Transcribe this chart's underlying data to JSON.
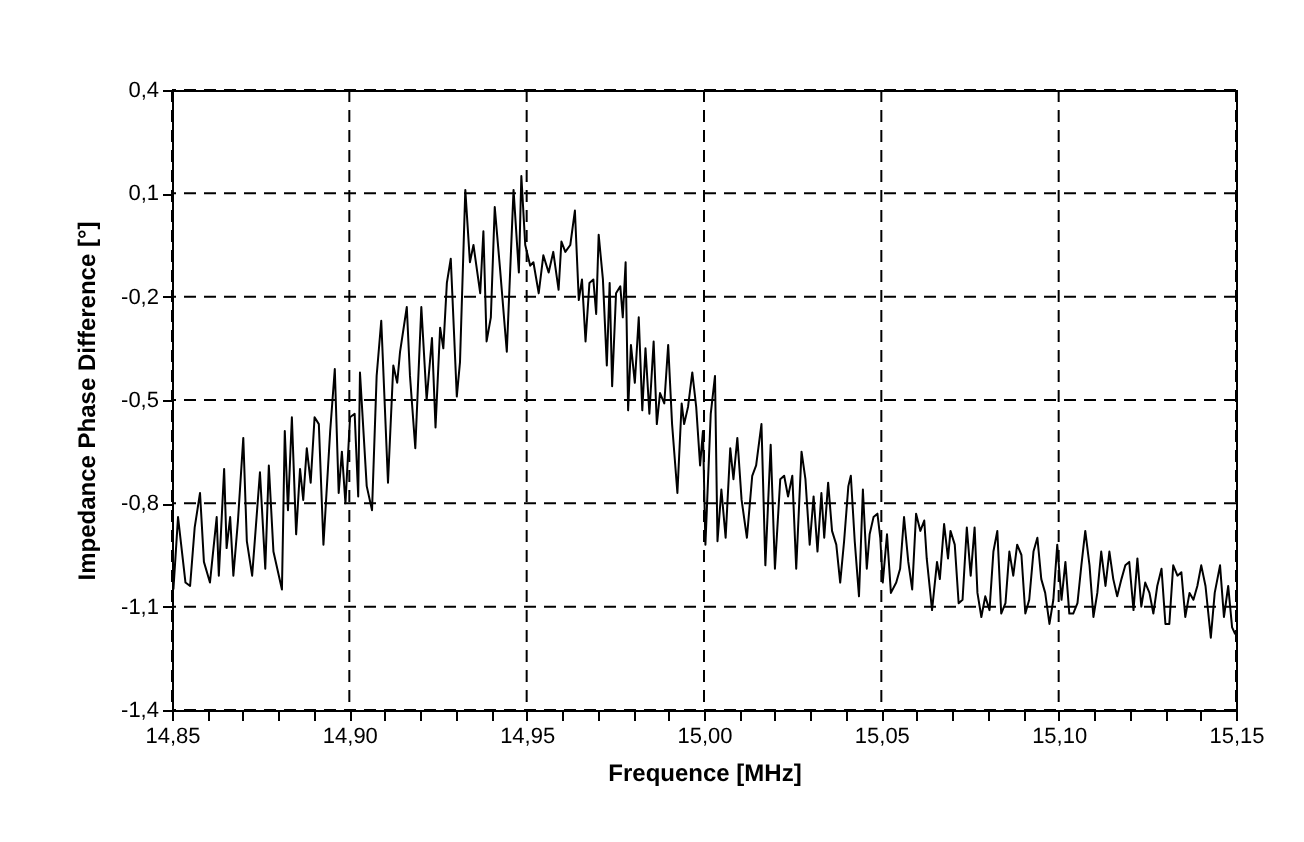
{
  "chart_data": {
    "type": "line",
    "xlabel": "Frequence [MHz]",
    "ylabel": "Impedance Phase Difference [°]",
    "xlim": [
      14.85,
      15.15
    ],
    "ylim": [
      -1.4,
      0.4
    ],
    "xticks": [
      {
        "value": 14.85,
        "label": "14,85"
      },
      {
        "value": 14.86,
        "label": null
      },
      {
        "value": 14.87,
        "label": null
      },
      {
        "value": 14.88,
        "label": null
      },
      {
        "value": 14.89,
        "label": null
      },
      {
        "value": 14.9,
        "label": "14,90"
      },
      {
        "value": 14.91,
        "label": null
      },
      {
        "value": 14.92,
        "label": null
      },
      {
        "value": 14.93,
        "label": null
      },
      {
        "value": 14.94,
        "label": null
      },
      {
        "value": 14.95,
        "label": "14,95"
      },
      {
        "value": 14.96,
        "label": null
      },
      {
        "value": 14.97,
        "label": null
      },
      {
        "value": 14.98,
        "label": null
      },
      {
        "value": 14.99,
        "label": null
      },
      {
        "value": 15.0,
        "label": "15,00"
      },
      {
        "value": 15.01,
        "label": null
      },
      {
        "value": 15.02,
        "label": null
      },
      {
        "value": 15.03,
        "label": null
      },
      {
        "value": 15.04,
        "label": null
      },
      {
        "value": 15.05,
        "label": "15,05"
      },
      {
        "value": 15.06,
        "label": null
      },
      {
        "value": 15.07,
        "label": null
      },
      {
        "value": 15.08,
        "label": null
      },
      {
        "value": 15.09,
        "label": null
      },
      {
        "value": 15.1,
        "label": "15,10"
      },
      {
        "value": 15.11,
        "label": null
      },
      {
        "value": 15.12,
        "label": null
      },
      {
        "value": 15.13,
        "label": null
      },
      {
        "value": 15.14,
        "label": null
      },
      {
        "value": 15.15,
        "label": "15,15"
      }
    ],
    "yticks": [
      {
        "value": -1.4,
        "label": "-1,4"
      },
      {
        "value": -1.1,
        "label": "-1,1"
      },
      {
        "value": -0.8,
        "label": "-0,8"
      },
      {
        "value": -0.5,
        "label": "-0,5"
      },
      {
        "value": -0.2,
        "label": "-0,2"
      },
      {
        "value": 0.1,
        "label": "0,1"
      },
      {
        "value": 0.4,
        "label": "0,4"
      }
    ],
    "grid": true,
    "line_style": "solid",
    "marker": "none",
    "series": [
      {
        "color": "#000000",
        "x": [
          14.8504,
          14.8517,
          14.8538,
          14.8551,
          14.8564,
          14.8579,
          14.859,
          14.8607,
          14.8626,
          14.8632,
          14.8647,
          14.8654,
          14.8664,
          14.8673,
          14.8686,
          14.8701,
          14.8711,
          14.8726,
          14.8748,
          14.8763,
          14.8773,
          14.8786,
          14.881,
          14.8818,
          14.8827,
          14.8838,
          14.885,
          14.8861,
          14.887,
          14.888,
          14.8891,
          14.8902,
          14.8914,
          14.8927,
          14.8946,
          14.8959,
          14.897,
          14.8979,
          14.8989,
          14.9002,
          14.9015,
          14.9025,
          14.903,
          14.9049,
          14.9064,
          14.9077,
          14.909,
          14.9109,
          14.9124,
          14.9135,
          14.9143,
          14.9162,
          14.9171,
          14.9186,
          14.9203,
          14.9218,
          14.9233,
          14.9243,
          14.9256,
          14.9265,
          14.9275,
          14.9286,
          14.9303,
          14.9312,
          14.9327,
          14.934,
          14.935,
          14.9369,
          14.9378,
          14.9387,
          14.9399,
          14.941,
          14.9425,
          14.9444,
          14.9463,
          14.9478,
          14.9485,
          14.9496,
          14.951,
          14.9519,
          14.9534,
          14.9547,
          14.9562,
          14.9575,
          14.959,
          14.9598,
          14.9609,
          14.9623,
          14.9636,
          14.9647,
          14.9656,
          14.9666,
          14.9677,
          14.9688,
          14.9696,
          14.9703,
          14.9715,
          14.9726,
          14.9734,
          14.9741,
          14.9752,
          14.9764,
          14.9771,
          14.9779,
          14.9786,
          14.9794,
          14.9805,
          14.9816,
          14.9826,
          14.9835,
          14.9846,
          14.9858,
          14.9867,
          14.9876,
          14.9888,
          14.9899,
          14.991,
          14.9925,
          14.9937,
          14.9944,
          14.9955,
          14.9967,
          14.9978,
          14.9989,
          14.9997,
          15.0004,
          15.0019,
          15.0031,
          15.0038,
          15.0049,
          15.0061,
          15.0074,
          15.0083,
          15.0094,
          15.0106,
          15.0121,
          15.0136,
          15.0147,
          15.0162,
          15.0173,
          15.0188,
          15.02,
          15.0215,
          15.0226,
          15.0237,
          15.0249,
          15.026,
          15.0275,
          15.0286,
          15.0298,
          15.0309,
          15.032,
          15.0331,
          15.0339,
          15.035,
          15.0361,
          15.0373,
          15.0384,
          15.0395,
          15.0407,
          15.0414,
          15.0425,
          15.0437,
          15.0448,
          15.0459,
          15.0467,
          15.0478,
          15.0489,
          15.0497,
          15.0504,
          15.0516,
          15.0527,
          15.0542,
          15.0553,
          15.0564,
          15.0576,
          15.0587,
          15.0598,
          15.061,
          15.0621,
          15.0628,
          15.0643,
          15.0657,
          15.0665,
          15.0677,
          15.0688,
          15.0695,
          15.0707,
          15.0718,
          15.0729,
          15.0741,
          15.0752,
          15.0763,
          15.0771,
          15.0782,
          15.0793,
          15.0805,
          15.0816,
          15.0827,
          15.0838,
          15.085,
          15.0861,
          15.0872,
          15.0883,
          15.0895,
          15.0906,
          15.0917,
          15.0929,
          15.094,
          15.0951,
          15.0962,
          15.0974,
          15.0985,
          15.0996,
          15.1008,
          15.1019,
          15.103,
          15.1041,
          15.1053,
          15.1064,
          15.1075,
          15.1087,
          15.1098,
          15.1109,
          15.112,
          15.1132,
          15.1143,
          15.1154,
          15.1165,
          15.1177,
          15.1188,
          15.1199,
          15.1211,
          15.1222,
          15.1233,
          15.1244,
          15.1256,
          15.1267,
          15.1278,
          15.129,
          15.1301,
          15.1312,
          15.1323,
          15.1335,
          15.1346,
          15.1357,
          15.1369,
          15.138,
          15.1391,
          15.1402,
          15.1414,
          15.1429,
          15.144,
          15.1455,
          15.1466,
          15.1478,
          15.1489,
          15.1498
        ],
        "values": [
          -1.05,
          -0.84,
          -1.03,
          -1.04,
          -0.87,
          -0.77,
          -0.97,
          -1.03,
          -0.84,
          -1.01,
          -0.7,
          -0.93,
          -0.84,
          -1.01,
          -0.85,
          -0.61,
          -0.91,
          -1.01,
          -0.71,
          -0.99,
          -0.69,
          -0.94,
          -1.05,
          -0.59,
          -0.82,
          -0.55,
          -0.89,
          -0.7,
          -0.79,
          -0.64,
          -0.74,
          -0.55,
          -0.57,
          -0.92,
          -0.59,
          -0.41,
          -0.77,
          -0.65,
          -0.8,
          -0.55,
          -0.54,
          -0.78,
          -0.42,
          -0.75,
          -0.82,
          -0.43,
          -0.27,
          -0.74,
          -0.4,
          -0.45,
          -0.36,
          -0.23,
          -0.43,
          -0.64,
          -0.23,
          -0.5,
          -0.32,
          -0.58,
          -0.29,
          -0.35,
          -0.16,
          -0.09,
          -0.49,
          -0.39,
          0.11,
          -0.1,
          -0.05,
          -0.19,
          -0.01,
          -0.33,
          -0.26,
          0.06,
          -0.12,
          -0.36,
          0.11,
          -0.13,
          0.15,
          -0.05,
          -0.11,
          -0.1,
          -0.19,
          -0.08,
          -0.13,
          -0.07,
          -0.18,
          -0.04,
          -0.07,
          -0.05,
          0.05,
          -0.21,
          -0.15,
          -0.33,
          -0.16,
          -0.15,
          -0.25,
          -0.02,
          -0.15,
          -0.4,
          -0.16,
          -0.46,
          -0.19,
          -0.17,
          -0.26,
          -0.1,
          -0.53,
          -0.34,
          -0.45,
          -0.26,
          -0.53,
          -0.35,
          -0.54,
          -0.33,
          -0.57,
          -0.48,
          -0.51,
          -0.34,
          -0.57,
          -0.77,
          -0.51,
          -0.57,
          -0.52,
          -0.42,
          -0.52,
          -0.69,
          -0.59,
          -0.92,
          -0.54,
          -0.43,
          -0.91,
          -0.76,
          -0.9,
          -0.64,
          -0.73,
          -0.61,
          -0.79,
          -0.9,
          -0.72,
          -0.69,
          -0.57,
          -0.98,
          -0.63,
          -0.99,
          -0.73,
          -0.72,
          -0.78,
          -0.72,
          -0.99,
          -0.65,
          -0.73,
          -0.92,
          -0.78,
          -0.94,
          -0.77,
          -0.9,
          -0.74,
          -0.88,
          -0.92,
          -1.03,
          -0.91,
          -0.75,
          -0.72,
          -0.91,
          -1.07,
          -0.76,
          -0.99,
          -0.89,
          -0.84,
          -0.83,
          -0.9,
          -1.03,
          -0.89,
          -1.06,
          -1.03,
          -0.99,
          -0.84,
          -0.97,
          -1.05,
          -0.83,
          -0.88,
          -0.85,
          -0.96,
          -1.11,
          -0.97,
          -1.02,
          -0.86,
          -0.96,
          -0.88,
          -0.92,
          -1.09,
          -1.08,
          -0.87,
          -1.01,
          -0.87,
          -1.06,
          -1.13,
          -1.07,
          -1.11,
          -0.94,
          -0.88,
          -1.12,
          -1.09,
          -0.94,
          -1.01,
          -0.92,
          -0.95,
          -1.12,
          -1.08,
          -0.94,
          -0.9,
          -1.02,
          -1.06,
          -1.15,
          -1.08,
          -0.92,
          -1.08,
          -0.97,
          -1.12,
          -1.12,
          -1.09,
          -0.98,
          -0.88,
          -0.98,
          -1.13,
          -1.06,
          -0.94,
          -1.04,
          -0.94,
          -1.02,
          -1.07,
          -1.02,
          -0.98,
          -0.97,
          -1.11,
          -0.96,
          -1.1,
          -1.03,
          -1.06,
          -1.12,
          -1.04,
          -0.99,
          -1.15,
          -1.15,
          -0.98,
          -1.01,
          -1.0,
          -1.13,
          -1.06,
          -1.08,
          -1.04,
          -0.98,
          -1.04,
          -1.19,
          -1.06,
          -0.98,
          -1.13,
          -1.04,
          -1.16,
          -1.18
        ]
      }
    ]
  }
}
